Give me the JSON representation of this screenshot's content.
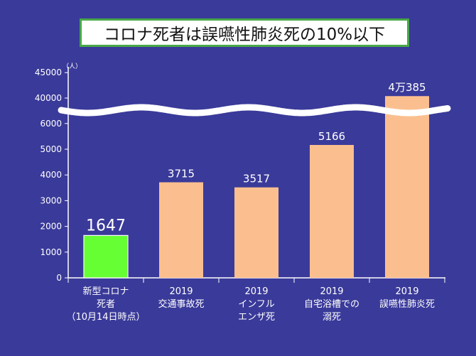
{
  "title": "コロナ死者は誤嚥性肺炎死の10%以下",
  "colors": {
    "background": "#3a3a9a",
    "highlight_bar": "#66ff33",
    "bar": "#fbbf8f",
    "highlight_label": "#ffff00",
    "label": "#ffffff"
  },
  "chart_data": {
    "type": "bar",
    "unit": "（人）",
    "axis_break": true,
    "lower_ticks": [
      "0",
      "1000",
      "2000",
      "3000",
      "4000",
      "5000",
      "6000"
    ],
    "upper_ticks": [
      "40000",
      "45000"
    ],
    "lower_range": [
      0,
      6500
    ],
    "upper_range": [
      37500,
      45500
    ],
    "categories": [
      [
        "新型コロナ",
        "死者",
        "（10月14日時点）"
      ],
      [
        "2019",
        "交通事故死"
      ],
      [
        "2019",
        "インフル",
        "エンザ死"
      ],
      [
        "2019",
        "自宅浴槽での",
        "溺死"
      ],
      [
        "2019",
        "誤嚥性肺炎死"
      ]
    ],
    "values": [
      1647,
      3715,
      3517,
      5166,
      40385
    ],
    "value_labels": [
      "1647",
      "3715",
      "3517",
      "5166",
      "4万385"
    ],
    "highlight_index": 0
  }
}
